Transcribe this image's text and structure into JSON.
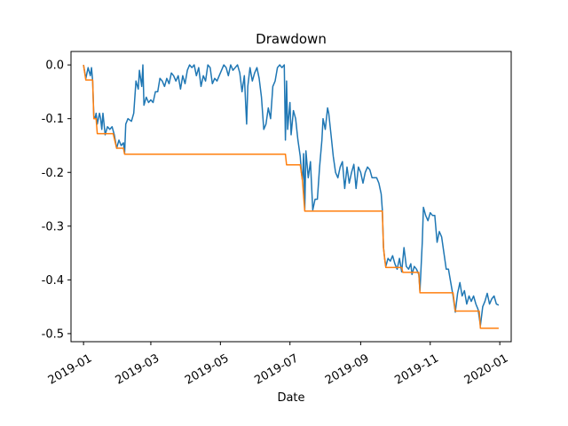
{
  "chart_data": {
    "type": "line",
    "title": "Drawdown",
    "xlabel": "Date",
    "ylabel": "",
    "xlim": [
      "2018-12-21",
      "2020-01-11"
    ],
    "ylim": [
      -0.515,
      0.025
    ],
    "x_ticks": [
      "2019-01",
      "2019-03",
      "2019-05",
      "2019-07",
      "2019-09",
      "2019-11",
      "2020-01"
    ],
    "x_tick_dates": [
      "2019-01-01",
      "2019-03-01",
      "2019-05-01",
      "2019-07-01",
      "2019-09-01",
      "2019-11-01",
      "2020-01-01"
    ],
    "y_ticks": [
      "0.0",
      "-0.1",
      "-0.2",
      "-0.3",
      "-0.4",
      "-0.5"
    ],
    "y_tick_values": [
      0.0,
      -0.1,
      -0.2,
      -0.3,
      -0.4,
      -0.5
    ],
    "grid": false,
    "legend": null,
    "series": [
      {
        "color": "#1f77b4",
        "points": [
          [
            "2019-01-01",
            0.0
          ],
          [
            "2019-01-03",
            -0.025
          ],
          [
            "2019-01-05",
            -0.005
          ],
          [
            "2019-01-07",
            -0.02
          ],
          [
            "2019-01-08",
            -0.005
          ],
          [
            "2019-01-09",
            -0.03
          ],
          [
            "2019-01-10",
            -0.095
          ],
          [
            "2019-01-11",
            -0.1
          ],
          [
            "2019-01-12",
            -0.09
          ],
          [
            "2019-01-13",
            -0.11
          ],
          [
            "2019-01-15",
            -0.09
          ],
          [
            "2019-01-16",
            -0.1
          ],
          [
            "2019-01-17",
            -0.12
          ],
          [
            "2019-01-18",
            -0.09
          ],
          [
            "2019-01-20",
            -0.13
          ],
          [
            "2019-01-22",
            -0.115
          ],
          [
            "2019-01-24",
            -0.12
          ],
          [
            "2019-01-26",
            -0.115
          ],
          [
            "2019-01-28",
            -0.13
          ],
          [
            "2019-01-30",
            -0.155
          ],
          [
            "2019-02-01",
            -0.14
          ],
          [
            "2019-02-03",
            -0.15
          ],
          [
            "2019-02-05",
            -0.145
          ],
          [
            "2019-02-06",
            -0.165
          ],
          [
            "2019-02-07",
            -0.11
          ],
          [
            "2019-02-09",
            -0.1
          ],
          [
            "2019-02-12",
            -0.105
          ],
          [
            "2019-02-14",
            -0.09
          ],
          [
            "2019-02-16",
            -0.03
          ],
          [
            "2019-02-18",
            -0.045
          ],
          [
            "2019-02-19",
            -0.01
          ],
          [
            "2019-02-21",
            -0.04
          ],
          [
            "2019-02-22",
            0.0
          ],
          [
            "2019-02-23",
            -0.075
          ],
          [
            "2019-02-25",
            -0.06
          ],
          [
            "2019-02-27",
            -0.07
          ],
          [
            "2019-03-01",
            -0.065
          ],
          [
            "2019-03-03",
            -0.07
          ],
          [
            "2019-03-05",
            -0.05
          ],
          [
            "2019-03-07",
            -0.05
          ],
          [
            "2019-03-09",
            -0.025
          ],
          [
            "2019-03-11",
            -0.03
          ],
          [
            "2019-03-13",
            -0.04
          ],
          [
            "2019-03-15",
            -0.025
          ],
          [
            "2019-03-17",
            -0.035
          ],
          [
            "2019-03-19",
            -0.015
          ],
          [
            "2019-03-21",
            -0.02
          ],
          [
            "2019-03-23",
            -0.03
          ],
          [
            "2019-03-25",
            -0.02
          ],
          [
            "2019-03-27",
            -0.045
          ],
          [
            "2019-03-29",
            -0.02
          ],
          [
            "2019-03-31",
            -0.035
          ],
          [
            "2019-04-02",
            -0.01
          ],
          [
            "2019-04-04",
            0.0
          ],
          [
            "2019-04-06",
            -0.005
          ],
          [
            "2019-04-08",
            0.0
          ],
          [
            "2019-04-10",
            -0.02
          ],
          [
            "2019-04-12",
            -0.005
          ],
          [
            "2019-04-14",
            -0.04
          ],
          [
            "2019-04-16",
            -0.02
          ],
          [
            "2019-04-18",
            -0.03
          ],
          [
            "2019-04-20",
            0.0
          ],
          [
            "2019-04-22",
            -0.005
          ],
          [
            "2019-04-24",
            -0.035
          ],
          [
            "2019-04-26",
            -0.025
          ],
          [
            "2019-04-28",
            -0.03
          ],
          [
            "2019-04-30",
            -0.02
          ],
          [
            "2019-05-02",
            -0.01
          ],
          [
            "2019-05-04",
            0.0
          ],
          [
            "2019-05-06",
            -0.005
          ],
          [
            "2019-05-08",
            -0.02
          ],
          [
            "2019-05-10",
            0.0
          ],
          [
            "2019-05-12",
            -0.01
          ],
          [
            "2019-05-14",
            -0.005
          ],
          [
            "2019-05-16",
            0.0
          ],
          [
            "2019-05-18",
            -0.015
          ],
          [
            "2019-05-20",
            -0.05
          ],
          [
            "2019-05-22",
            -0.02
          ],
          [
            "2019-05-24",
            -0.11
          ],
          [
            "2019-05-25",
            -0.04
          ],
          [
            "2019-05-27",
            -0.005
          ],
          [
            "2019-05-29",
            -0.03
          ],
          [
            "2019-05-31",
            -0.015
          ],
          [
            "2019-06-02",
            -0.005
          ],
          [
            "2019-06-04",
            -0.025
          ],
          [
            "2019-06-06",
            -0.06
          ],
          [
            "2019-06-08",
            -0.12
          ],
          [
            "2019-06-10",
            -0.11
          ],
          [
            "2019-06-12",
            -0.08
          ],
          [
            "2019-06-14",
            -0.1
          ],
          [
            "2019-06-16",
            -0.04
          ],
          [
            "2019-06-18",
            -0.03
          ],
          [
            "2019-06-20",
            -0.005
          ],
          [
            "2019-06-22",
            0.0
          ],
          [
            "2019-06-24",
            -0.005
          ],
          [
            "2019-06-26",
            0.0
          ],
          [
            "2019-06-27",
            -0.14
          ],
          [
            "2019-06-28",
            -0.03
          ],
          [
            "2019-06-29",
            -0.12
          ],
          [
            "2019-07-01",
            -0.07
          ],
          [
            "2019-07-02",
            -0.13
          ],
          [
            "2019-07-04",
            -0.085
          ],
          [
            "2019-07-06",
            -0.1
          ],
          [
            "2019-07-08",
            -0.14
          ],
          [
            "2019-07-10",
            -0.17
          ],
          [
            "2019-07-11",
            -0.2
          ],
          [
            "2019-07-12",
            -0.215
          ],
          [
            "2019-07-13",
            -0.165
          ],
          [
            "2019-07-14",
            -0.27
          ],
          [
            "2019-07-15",
            -0.16
          ],
          [
            "2019-07-17",
            -0.21
          ],
          [
            "2019-07-19",
            -0.18
          ],
          [
            "2019-07-21",
            -0.27
          ],
          [
            "2019-07-23",
            -0.25
          ],
          [
            "2019-07-25",
            -0.25
          ],
          [
            "2019-07-27",
            -0.19
          ],
          [
            "2019-07-29",
            -0.14
          ],
          [
            "2019-07-30",
            -0.1
          ],
          [
            "2019-08-01",
            -0.12
          ],
          [
            "2019-08-03",
            -0.08
          ],
          [
            "2019-08-04",
            -0.09
          ],
          [
            "2019-08-06",
            -0.13
          ],
          [
            "2019-08-08",
            -0.17
          ],
          [
            "2019-08-10",
            -0.2
          ],
          [
            "2019-08-12",
            -0.21
          ],
          [
            "2019-08-14",
            -0.19
          ],
          [
            "2019-08-16",
            -0.18
          ],
          [
            "2019-08-18",
            -0.23
          ],
          [
            "2019-08-20",
            -0.19
          ],
          [
            "2019-08-22",
            -0.22
          ],
          [
            "2019-08-24",
            -0.2
          ],
          [
            "2019-08-26",
            -0.185
          ],
          [
            "2019-08-28",
            -0.23
          ],
          [
            "2019-08-30",
            -0.19
          ],
          [
            "2019-09-01",
            -0.2
          ],
          [
            "2019-09-03",
            -0.22
          ],
          [
            "2019-09-05",
            -0.2
          ],
          [
            "2019-09-07",
            -0.19
          ],
          [
            "2019-09-09",
            -0.195
          ],
          [
            "2019-09-11",
            -0.21
          ],
          [
            "2019-09-13",
            -0.21
          ],
          [
            "2019-09-15",
            -0.21
          ],
          [
            "2019-09-17",
            -0.22
          ],
          [
            "2019-09-19",
            -0.24
          ],
          [
            "2019-09-20",
            -0.27
          ],
          [
            "2019-09-21",
            -0.34
          ],
          [
            "2019-09-22",
            -0.36
          ],
          [
            "2019-09-23",
            -0.375
          ],
          [
            "2019-09-25",
            -0.36
          ],
          [
            "2019-09-27",
            -0.365
          ],
          [
            "2019-09-29",
            -0.355
          ],
          [
            "2019-10-01",
            -0.37
          ],
          [
            "2019-10-03",
            -0.38
          ],
          [
            "2019-10-05",
            -0.36
          ],
          [
            "2019-10-07",
            -0.385
          ],
          [
            "2019-10-09",
            -0.34
          ],
          [
            "2019-10-11",
            -0.375
          ],
          [
            "2019-10-13",
            -0.38
          ],
          [
            "2019-10-15",
            -0.37
          ],
          [
            "2019-10-16",
            -0.39
          ],
          [
            "2019-10-18",
            -0.375
          ],
          [
            "2019-10-20",
            -0.38
          ],
          [
            "2019-10-22",
            -0.39
          ],
          [
            "2019-10-23",
            -0.42
          ],
          [
            "2019-10-25",
            -0.33
          ],
          [
            "2019-10-26",
            -0.265
          ],
          [
            "2019-10-28",
            -0.28
          ],
          [
            "2019-10-30",
            -0.29
          ],
          [
            "2019-11-01",
            -0.275
          ],
          [
            "2019-11-03",
            -0.28
          ],
          [
            "2019-11-05",
            -0.28
          ],
          [
            "2019-11-07",
            -0.33
          ],
          [
            "2019-11-09",
            -0.31
          ],
          [
            "2019-11-11",
            -0.32
          ],
          [
            "2019-11-13",
            -0.35
          ],
          [
            "2019-11-15",
            -0.38
          ],
          [
            "2019-11-17",
            -0.38
          ],
          [
            "2019-11-19",
            -0.405
          ],
          [
            "2019-11-21",
            -0.43
          ],
          [
            "2019-11-23",
            -0.46
          ],
          [
            "2019-11-25",
            -0.425
          ],
          [
            "2019-11-27",
            -0.405
          ],
          [
            "2019-11-29",
            -0.43
          ],
          [
            "2019-12-01",
            -0.42
          ],
          [
            "2019-12-03",
            -0.445
          ],
          [
            "2019-12-05",
            -0.43
          ],
          [
            "2019-12-07",
            -0.44
          ],
          [
            "2019-12-09",
            -0.43
          ],
          [
            "2019-12-11",
            -0.445
          ],
          [
            "2019-12-13",
            -0.455
          ],
          [
            "2019-12-15",
            -0.485
          ],
          [
            "2019-12-17",
            -0.45
          ],
          [
            "2019-12-19",
            -0.44
          ],
          [
            "2019-12-21",
            -0.425
          ],
          [
            "2019-12-23",
            -0.445
          ],
          [
            "2019-12-25",
            -0.435
          ],
          [
            "2019-12-27",
            -0.43
          ],
          [
            "2019-12-29",
            -0.445
          ],
          [
            "2019-12-31",
            -0.447
          ]
        ]
      },
      {
        "color": "#ff7f0e",
        "points": [
          [
            "2019-01-01",
            0.0
          ],
          [
            "2019-01-03",
            -0.028
          ],
          [
            "2019-01-09",
            -0.028
          ],
          [
            "2019-01-10",
            -0.1
          ],
          [
            "2019-01-12",
            -0.1
          ],
          [
            "2019-01-13",
            -0.128
          ],
          [
            "2019-01-27",
            -0.128
          ],
          [
            "2019-01-30",
            -0.155
          ],
          [
            "2019-02-05",
            -0.155
          ],
          [
            "2019-02-06",
            -0.166
          ],
          [
            "2019-06-27",
            -0.166
          ],
          [
            "2019-06-28",
            -0.186
          ],
          [
            "2019-07-10",
            -0.186
          ],
          [
            "2019-07-12",
            -0.215
          ],
          [
            "2019-07-14",
            -0.272
          ],
          [
            "2019-09-20",
            -0.272
          ],
          [
            "2019-09-21",
            -0.34
          ],
          [
            "2019-09-22",
            -0.36
          ],
          [
            "2019-09-23",
            -0.377
          ],
          [
            "2019-10-07",
            -0.377
          ],
          [
            "2019-10-08",
            -0.386
          ],
          [
            "2019-10-22",
            -0.386
          ],
          [
            "2019-10-23",
            -0.424
          ],
          [
            "2019-11-21",
            -0.424
          ],
          [
            "2019-11-23",
            -0.458
          ],
          [
            "2019-12-14",
            -0.458
          ],
          [
            "2019-12-15",
            -0.49
          ],
          [
            "2019-12-31",
            -0.49
          ]
        ]
      }
    ]
  }
}
